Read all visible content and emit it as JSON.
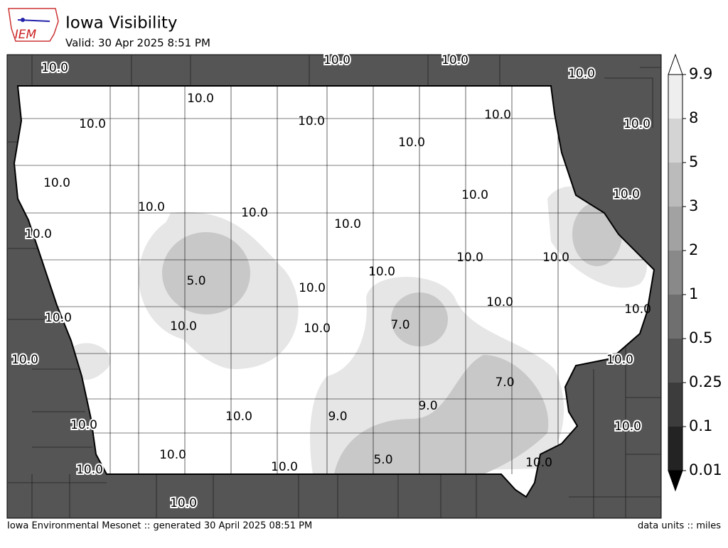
{
  "header": {
    "logo": "IEM",
    "title": "Iowa Visibility",
    "valid": "Valid: 30 Apr 2025 8:51 PM"
  },
  "map": {
    "stations": [
      "10.0",
      "10.0",
      "10.0",
      "10.0",
      "10.0",
      "10.0",
      "10.0",
      "10.0",
      "10.0",
      "10.0",
      "10.0",
      "10.0",
      "10.0",
      "10.0",
      "10.0",
      "10.0",
      "10.0",
      "10.0",
      "10.0",
      "10.0",
      "5.0",
      "10.0",
      "10.0",
      "10.0",
      "10.0",
      "10.0",
      "10.0",
      "7.0",
      "10.0",
      "10.0",
      "7.0",
      "9.0",
      "9.0",
      "10.0",
      "10.0",
      "10.0",
      "10.0",
      "5.0",
      "10.0",
      "10.0",
      "10.0",
      "10.0"
    ]
  },
  "legend": {
    "labels": [
      "9.9",
      "8",
      "5",
      "3",
      "2",
      "1",
      "0.5",
      "0.25",
      "0.1",
      "0.01"
    ]
  },
  "footer": {
    "left": "Iowa Environmental Mesonet :: generated 30 April 2025 08:51 PM",
    "right": "data units :: miles"
  }
}
